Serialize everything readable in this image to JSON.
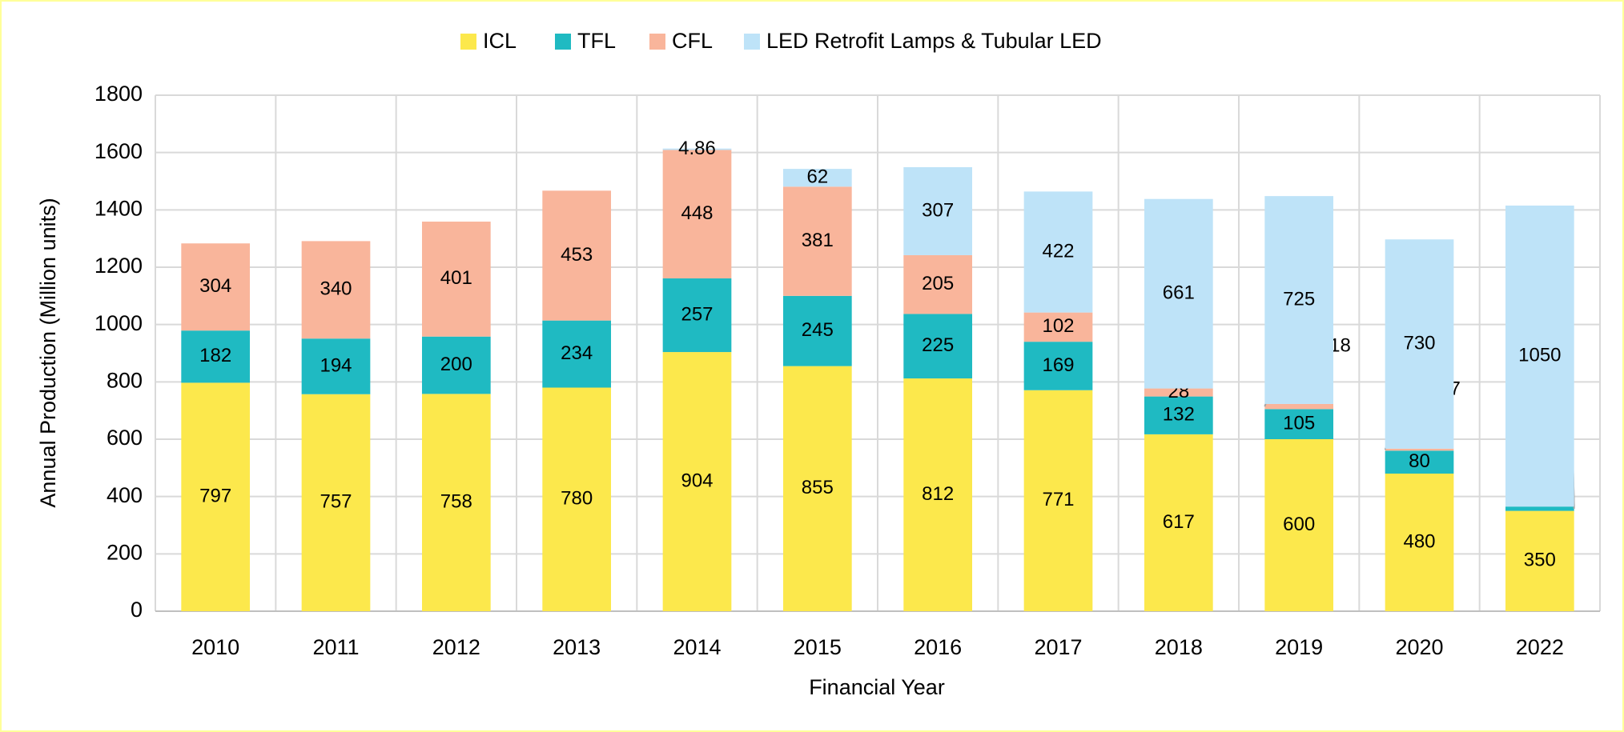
{
  "chart_data": {
    "type": "stacked_bar",
    "legend": "top",
    "grid": true,
    "x_label": "Financial Year",
    "y_label": "Annual Production (Million units)",
    "categories": [
      "2010",
      "2011",
      "2012",
      "2013",
      "2014",
      "2015",
      "2016",
      "2017",
      "2018",
      "2019",
      "2020",
      "2022"
    ],
    "series": [
      {
        "name": "ICL",
        "color": "#fce84c",
        "values": [
          797,
          757,
          758,
          780,
          904,
          855,
          812,
          771,
          617,
          600,
          480,
          350
        ]
      },
      {
        "name": "TFL",
        "color": "#1fbac2",
        "values": [
          182,
          194,
          200,
          234,
          257,
          245,
          225,
          169,
          132,
          105,
          80,
          15
        ]
      },
      {
        "name": "CFL",
        "color": "#f9b59b",
        "values": [
          304,
          340,
          401,
          453,
          448,
          381,
          205,
          102,
          28,
          18,
          7,
          0
        ]
      },
      {
        "name": "LED Retrofit Lamps & Tubular LED",
        "color": "#bee3f8",
        "values": [
          null,
          null,
          null,
          null,
          4.86,
          62,
          307,
          422,
          661,
          725,
          730,
          1050
        ]
      }
    ],
    "ylim": [
      0,
      1800
    ],
    "yticks": [
      0,
      200,
      400,
      600,
      800,
      1000,
      1200,
      1400,
      1600,
      1800
    ]
  }
}
